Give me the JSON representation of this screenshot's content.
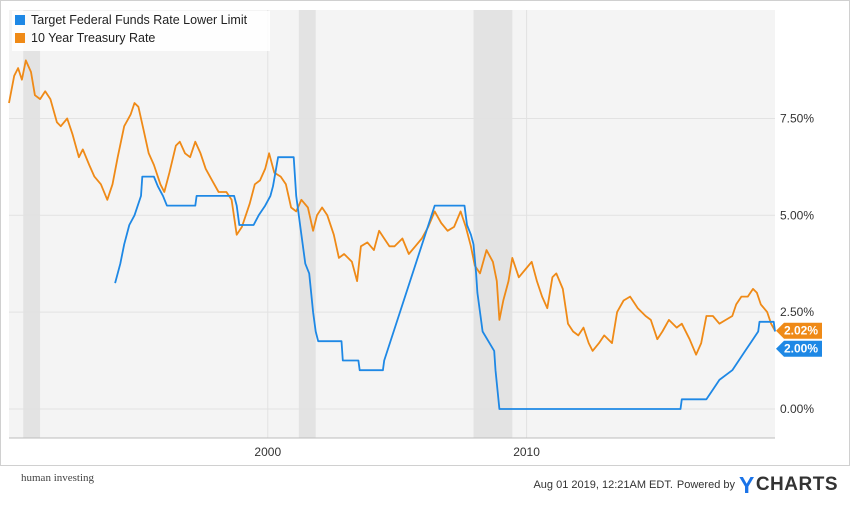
{
  "chart_data": {
    "type": "line",
    "title": "",
    "xlabel": "",
    "ylabel": "",
    "xlim": [
      1990.0,
      2019.6
    ],
    "ylim": [
      -0.75,
      10.3
    ],
    "y_ticks": [
      0,
      2.5,
      5,
      7.5
    ],
    "y_tick_labels": [
      "0.00%",
      "2.50%",
      "5.00%",
      "7.50%"
    ],
    "x_ticks": [
      2000,
      2010
    ],
    "x_tick_labels": [
      "2000",
      "2010"
    ],
    "grid": true,
    "legend_position": "top-left",
    "recessions": [
      [
        1990.55,
        1991.2
      ],
      [
        2001.2,
        2001.85
      ],
      [
        2007.95,
        2009.45
      ]
    ],
    "series": [
      {
        "name": "Target Federal Funds Rate Lower Limit",
        "color": "#1e88e5",
        "end_label": "2.00%",
        "points": [
          [
            1994.1,
            3.25
          ],
          [
            1994.3,
            3.75
          ],
          [
            1994.45,
            4.25
          ],
          [
            1994.65,
            4.75
          ],
          [
            1994.85,
            5.0
          ],
          [
            1995.1,
            5.5
          ],
          [
            1995.15,
            6.0
          ],
          [
            1995.6,
            6.0
          ],
          [
            1995.75,
            5.75
          ],
          [
            1995.95,
            5.5
          ],
          [
            1996.1,
            5.25
          ],
          [
            1997.2,
            5.25
          ],
          [
            1997.25,
            5.5
          ],
          [
            1998.7,
            5.5
          ],
          [
            1998.8,
            5.25
          ],
          [
            1998.85,
            5.0
          ],
          [
            1998.9,
            4.75
          ],
          [
            1999.45,
            4.75
          ],
          [
            1999.65,
            5.0
          ],
          [
            1999.9,
            5.25
          ],
          [
            2000.1,
            5.5
          ],
          [
            2000.2,
            5.75
          ],
          [
            2000.4,
            6.5
          ],
          [
            2001.0,
            6.5
          ],
          [
            2001.1,
            5.5
          ],
          [
            2001.3,
            4.5
          ],
          [
            2001.45,
            3.75
          ],
          [
            2001.6,
            3.5
          ],
          [
            2001.75,
            2.5
          ],
          [
            2001.85,
            2.0
          ],
          [
            2001.95,
            1.75
          ],
          [
            2002.85,
            1.75
          ],
          [
            2002.9,
            1.25
          ],
          [
            2003.5,
            1.25
          ],
          [
            2003.55,
            1.0
          ],
          [
            2004.45,
            1.0
          ],
          [
            2004.5,
            1.25
          ],
          [
            2006.45,
            5.25
          ],
          [
            2007.6,
            5.25
          ],
          [
            2007.7,
            4.75
          ],
          [
            2007.85,
            4.5
          ],
          [
            2007.95,
            4.25
          ],
          [
            2008.05,
            3.5
          ],
          [
            2008.1,
            3.0
          ],
          [
            2008.25,
            2.25
          ],
          [
            2008.3,
            2.0
          ],
          [
            2008.75,
            1.5
          ],
          [
            2008.8,
            1.0
          ],
          [
            2008.95,
            0.0
          ],
          [
            2015.95,
            0.0
          ],
          [
            2016.0,
            0.25
          ],
          [
            2016.95,
            0.25
          ],
          [
            2017.2,
            0.5
          ],
          [
            2017.45,
            0.75
          ],
          [
            2017.95,
            1.0
          ],
          [
            2018.2,
            1.25
          ],
          [
            2018.45,
            1.5
          ],
          [
            2018.7,
            1.75
          ],
          [
            2018.95,
            2.0
          ],
          [
            2019.0,
            2.25
          ],
          [
            2019.55,
            2.25
          ],
          [
            2019.6,
            2.0
          ]
        ]
      },
      {
        "name": "10 Year Treasury Rate",
        "color": "#ef8a17",
        "end_label": "2.02%",
        "points": [
          [
            1990.0,
            7.9
          ],
          [
            1990.2,
            8.6
          ],
          [
            1990.35,
            8.8
          ],
          [
            1990.5,
            8.5
          ],
          [
            1990.65,
            9.0
          ],
          [
            1990.85,
            8.7
          ],
          [
            1991.0,
            8.1
          ],
          [
            1991.2,
            8.0
          ],
          [
            1991.4,
            8.2
          ],
          [
            1991.6,
            8.0
          ],
          [
            1991.85,
            7.4
          ],
          [
            1992.0,
            7.3
          ],
          [
            1992.25,
            7.5
          ],
          [
            1992.45,
            7.1
          ],
          [
            1992.7,
            6.5
          ],
          [
            1992.85,
            6.7
          ],
          [
            1993.1,
            6.3
          ],
          [
            1993.3,
            6.0
          ],
          [
            1993.55,
            5.8
          ],
          [
            1993.8,
            5.4
          ],
          [
            1994.0,
            5.8
          ],
          [
            1994.2,
            6.5
          ],
          [
            1994.45,
            7.3
          ],
          [
            1994.7,
            7.6
          ],
          [
            1994.85,
            7.9
          ],
          [
            1995.0,
            7.8
          ],
          [
            1995.2,
            7.2
          ],
          [
            1995.4,
            6.6
          ],
          [
            1995.6,
            6.3
          ],
          [
            1995.85,
            5.8
          ],
          [
            1996.0,
            5.6
          ],
          [
            1996.2,
            6.1
          ],
          [
            1996.45,
            6.8
          ],
          [
            1996.6,
            6.9
          ],
          [
            1996.8,
            6.6
          ],
          [
            1997.0,
            6.5
          ],
          [
            1997.2,
            6.9
          ],
          [
            1997.4,
            6.6
          ],
          [
            1997.6,
            6.2
          ],
          [
            1997.85,
            5.9
          ],
          [
            1998.1,
            5.6
          ],
          [
            1998.4,
            5.6
          ],
          [
            1998.6,
            5.4
          ],
          [
            1998.8,
            4.5
          ],
          [
            1999.0,
            4.7
          ],
          [
            1999.3,
            5.3
          ],
          [
            1999.5,
            5.8
          ],
          [
            1999.7,
            5.9
          ],
          [
            1999.9,
            6.2
          ],
          [
            2000.05,
            6.6
          ],
          [
            2000.25,
            6.1
          ],
          [
            2000.5,
            6.0
          ],
          [
            2000.7,
            5.8
          ],
          [
            2000.9,
            5.2
          ],
          [
            2001.1,
            5.1
          ],
          [
            2001.3,
            5.4
          ],
          [
            2001.55,
            5.2
          ],
          [
            2001.75,
            4.6
          ],
          [
            2001.9,
            5.0
          ],
          [
            2002.1,
            5.2
          ],
          [
            2002.3,
            5.0
          ],
          [
            2002.55,
            4.5
          ],
          [
            2002.75,
            3.9
          ],
          [
            2002.95,
            4.0
          ],
          [
            2003.25,
            3.8
          ],
          [
            2003.45,
            3.3
          ],
          [
            2003.6,
            4.2
          ],
          [
            2003.85,
            4.3
          ],
          [
            2004.1,
            4.1
          ],
          [
            2004.3,
            4.6
          ],
          [
            2004.5,
            4.4
          ],
          [
            2004.7,
            4.2
          ],
          [
            2004.9,
            4.2
          ],
          [
            2005.2,
            4.4
          ],
          [
            2005.45,
            4.0
          ],
          [
            2005.7,
            4.2
          ],
          [
            2005.95,
            4.4
          ],
          [
            2006.2,
            4.7
          ],
          [
            2006.45,
            5.1
          ],
          [
            2006.7,
            4.8
          ],
          [
            2006.95,
            4.6
          ],
          [
            2007.2,
            4.7
          ],
          [
            2007.45,
            5.1
          ],
          [
            2007.65,
            4.7
          ],
          [
            2007.85,
            4.2
          ],
          [
            2008.0,
            3.7
          ],
          [
            2008.2,
            3.5
          ],
          [
            2008.45,
            4.1
          ],
          [
            2008.7,
            3.8
          ],
          [
            2008.85,
            3.3
          ],
          [
            2008.95,
            2.3
          ],
          [
            2009.1,
            2.8
          ],
          [
            2009.3,
            3.3
          ],
          [
            2009.45,
            3.9
          ],
          [
            2009.7,
            3.4
          ],
          [
            2009.95,
            3.6
          ],
          [
            2010.2,
            3.8
          ],
          [
            2010.4,
            3.3
          ],
          [
            2010.6,
            2.9
          ],
          [
            2010.8,
            2.6
          ],
          [
            2011.0,
            3.4
          ],
          [
            2011.15,
            3.5
          ],
          [
            2011.4,
            3.1
          ],
          [
            2011.6,
            2.2
          ],
          [
            2011.8,
            2.0
          ],
          [
            2012.0,
            1.9
          ],
          [
            2012.2,
            2.1
          ],
          [
            2012.4,
            1.7
          ],
          [
            2012.55,
            1.5
          ],
          [
            2012.8,
            1.7
          ],
          [
            2013.0,
            1.9
          ],
          [
            2013.3,
            1.7
          ],
          [
            2013.5,
            2.5
          ],
          [
            2013.75,
            2.8
          ],
          [
            2014.0,
            2.9
          ],
          [
            2014.3,
            2.6
          ],
          [
            2014.6,
            2.4
          ],
          [
            2014.8,
            2.3
          ],
          [
            2015.05,
            1.8
          ],
          [
            2015.25,
            2.0
          ],
          [
            2015.5,
            2.3
          ],
          [
            2015.8,
            2.1
          ],
          [
            2016.0,
            2.2
          ],
          [
            2016.3,
            1.8
          ],
          [
            2016.55,
            1.4
          ],
          [
            2016.75,
            1.7
          ],
          [
            2016.95,
            2.4
          ],
          [
            2017.2,
            2.4
          ],
          [
            2017.45,
            2.2
          ],
          [
            2017.7,
            2.3
          ],
          [
            2017.95,
            2.4
          ],
          [
            2018.1,
            2.7
          ],
          [
            2018.3,
            2.9
          ],
          [
            2018.55,
            2.9
          ],
          [
            2018.75,
            3.1
          ],
          [
            2018.9,
            3.0
          ],
          [
            2019.05,
            2.7
          ],
          [
            2019.3,
            2.5
          ],
          [
            2019.45,
            2.2
          ],
          [
            2019.6,
            2.02
          ]
        ]
      }
    ]
  },
  "footer": {
    "brand_tagline": "human investing",
    "timestamp": "Aug 01 2019, 12:21AM EDT.",
    "powered_by": "Powered by",
    "logo_y": "Y",
    "logo_rest": "CHARTS"
  }
}
